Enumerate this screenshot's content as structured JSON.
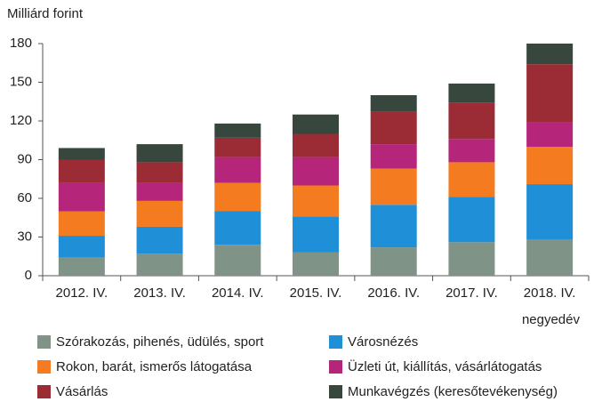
{
  "chart_data": {
    "type": "stacked_bar",
    "y_label": "Milliárd forint",
    "x_label": "negyedév",
    "categories": [
      "2012. IV.",
      "2013. IV.",
      "2014. IV.",
      "2015. IV.",
      "2016. IV.",
      "2017. IV.",
      "2018. IV."
    ],
    "series": [
      {
        "name": "Szórakozás, pihenés, üdülés, sport",
        "color": "#7f9487",
        "values": [
          14,
          17,
          24,
          18,
          22,
          26,
          28
        ]
      },
      {
        "name": "Városnézés",
        "color": "#1f8fd8",
        "values": [
          17,
          21,
          26,
          28,
          33,
          35,
          43
        ]
      },
      {
        "name": "Rokon, barát, ismerős látogatása",
        "color": "#f47b20",
        "values": [
          19,
          20,
          22,
          24,
          28,
          27,
          29
        ]
      },
      {
        "name": "Üzleti út, kiállítás, vásárlátogatás",
        "color": "#b5267a",
        "values": [
          22,
          14,
          20,
          22,
          19,
          18,
          19
        ]
      },
      {
        "name": "Vásárlás",
        "color": "#9b2b35",
        "values": [
          18,
          16,
          15,
          18,
          25,
          28,
          45
        ]
      },
      {
        "name": "Munkavégzés (keresőtevékenység)",
        "color": "#37473e",
        "values": [
          9,
          14,
          11,
          15,
          13,
          15,
          16
        ]
      }
    ],
    "ylim": [
      0,
      180
    ],
    "yticks": [
      0,
      30,
      60,
      90,
      120,
      150,
      180
    ],
    "grid": false
  }
}
